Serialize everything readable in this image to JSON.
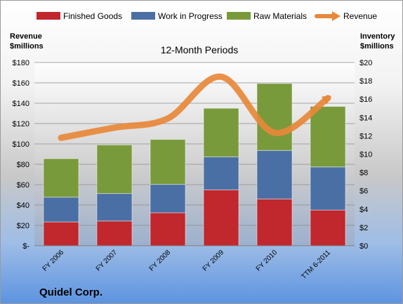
{
  "chart_data": {
    "type": "bar",
    "stacked": true,
    "title": "12-Month Periods",
    "company": "Quidel Corp.",
    "categories": [
      "FY 2006",
      "FY 2007",
      "FY 2008",
      "FY 2009",
      "FY 2010",
      "TTM 6-2011"
    ],
    "ylabel_left": "Revenue\n$millions",
    "ylabel_right": "Inventory\n$millions",
    "ylim_left": [
      0,
      180
    ],
    "ylim_right": [
      0,
      20
    ],
    "yticks_left": [
      "$-",
      "$20",
      "$40",
      "$60",
      "$80",
      "$100",
      "$120",
      "$140",
      "$160",
      "$180"
    ],
    "yticks_right": [
      "$0",
      "$2",
      "$4",
      "$6",
      "$8",
      "$10",
      "$12",
      "$14",
      "$16",
      "$18",
      "$20"
    ],
    "series": [
      {
        "name": "Finished Goods",
        "axis": "right",
        "color": "#c0282d",
        "values": [
          2.6,
          2.7,
          3.6,
          6.1,
          5.1,
          3.9
        ]
      },
      {
        "name": "Work in Progress",
        "axis": "right",
        "color": "#4a6fa5",
        "values": [
          2.7,
          3.0,
          3.1,
          3.6,
          5.3,
          4.7
        ]
      },
      {
        "name": "Raw Materials",
        "axis": "right",
        "color": "#799a3b",
        "values": [
          4.2,
          5.3,
          4.9,
          5.3,
          7.3,
          6.6
        ]
      },
      {
        "name": "Revenue",
        "axis": "left",
        "type": "line",
        "color": "#e8883a",
        "values": [
          106,
          116,
          125,
          166,
          111,
          145
        ]
      }
    ],
    "legend_position": "top",
    "grid": true
  }
}
